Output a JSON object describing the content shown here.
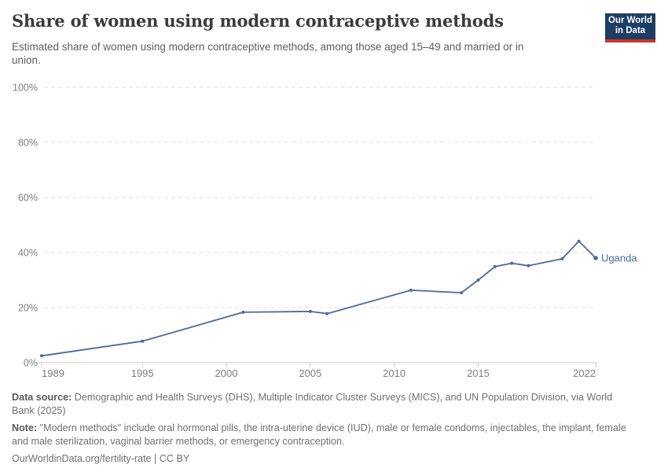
{
  "header": {
    "title": "Share of women using modern contraceptive methods",
    "subtitle_line1": "Estimated share of women using modern contraceptive methods, among those aged 15–49 and married or in",
    "subtitle_line2": "union.",
    "logo": {
      "line1": "Our World",
      "line2": "in Data",
      "bg_color": "#1d3d63",
      "bar_color": "#cc342a"
    }
  },
  "chart_data": {
    "type": "line",
    "title": "Share of women using modern contraceptive methods",
    "xlabel": "",
    "ylabel": "",
    "grid": true,
    "legend_position": "end-of-line label",
    "xlim": [
      1989,
      2022
    ],
    "ylim": [
      0,
      100
    ],
    "xticks": [
      1989,
      1995,
      2000,
      2005,
      2010,
      2015,
      2022
    ],
    "yticks": [
      0,
      20,
      40,
      60,
      80,
      100
    ],
    "ytick_suffix": "%",
    "axis_text_color": "#7e7e7e",
    "grid_color": "#e0e0e0",
    "axis_color": "#c8c8c8",
    "series": [
      {
        "name": "Uganda",
        "color": "#4d6a9c",
        "points": [
          [
            1989,
            2.5
          ],
          [
            1995,
            7.8
          ],
          [
            2001,
            18.3
          ],
          [
            2005,
            18.6
          ],
          [
            2006,
            17.8
          ],
          [
            2011,
            26.3
          ],
          [
            2014,
            25.4
          ],
          [
            2015,
            30.0
          ],
          [
            2016,
            34.9
          ],
          [
            2017,
            36.1
          ],
          [
            2018,
            35.2
          ],
          [
            2020,
            37.7
          ],
          [
            2021,
            44.1
          ],
          [
            2022,
            38.0
          ]
        ]
      }
    ]
  },
  "footer": {
    "datasource_label": "Data source:",
    "datasource_line1": "Demographic and Health Surveys (DHS), Multiple Indicator Cluster Surveys (MICS), and UN Population Division, via World",
    "datasource_line2": "Bank (2025)",
    "note_label": "Note:",
    "note_line1": "\"Modern methods\" include oral hormonal pills, the intra-uterine device (IUD), male or female condoms, injectables, the implant, female",
    "note_line2": "and male sterilization, vaginal barrier methods, or emergency contraception.",
    "license_text": "OurWorldinData.org/fertility-rate | CC BY"
  }
}
